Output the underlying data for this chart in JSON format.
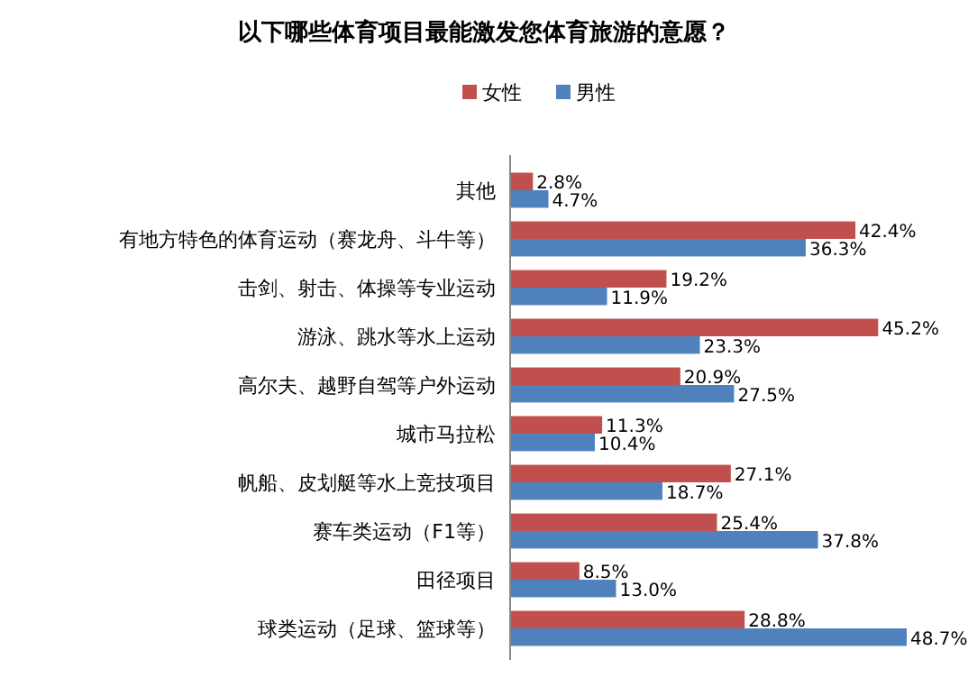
{
  "chart_data": {
    "type": "bar",
    "orientation": "horizontal",
    "title": "以下哪些体育项目最能激发您体育旅游的意愿？",
    "categories": [
      "其他",
      "有地方特色的体育运动（赛龙舟、斗牛等）",
      "击剑、射击、体操等专业运动",
      "游泳、跳水等水上运动",
      "高尔夫、越野自驾等户外运动",
      "城市马拉松",
      "帆船、皮划艇等水上竞技项目",
      "赛车类运动（F1等）",
      "田径项目",
      "球类运动（足球、篮球等）"
    ],
    "series": [
      {
        "name": "女性",
        "color": "#c0504d",
        "values": [
          2.8,
          42.4,
          19.2,
          45.2,
          20.9,
          11.3,
          27.1,
          25.4,
          8.5,
          28.8
        ],
        "value_labels": [
          "2.8%",
          "42.4%",
          "19.2%",
          "45.2%",
          "20.9%",
          "11.3%",
          "27.1%",
          "25.4%",
          "8.5%",
          "28.8%"
        ]
      },
      {
        "name": "男性",
        "color": "#4f81bd",
        "values": [
          4.7,
          36.3,
          11.9,
          23.3,
          27.5,
          10.4,
          18.7,
          37.8,
          13.0,
          48.7
        ],
        "value_labels": [
          "4.7%",
          "36.3%",
          "11.9%",
          "23.3%",
          "27.5%",
          "10.4%",
          "18.7%",
          "37.8%",
          "13.0%",
          "48.7%"
        ]
      }
    ],
    "legend": "top"
  }
}
